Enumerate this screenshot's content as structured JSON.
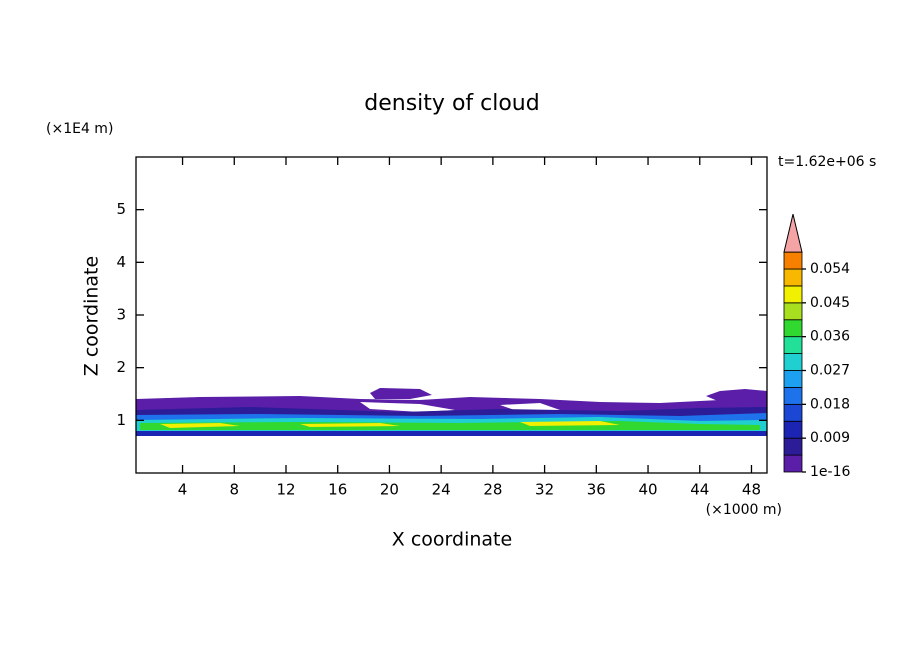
{
  "chart_data": {
    "type": "contour",
    "title": "density of cloud",
    "y_unit": "(×1E4 m)",
    "x_unit": "(×1000 m)",
    "time_label": "t=1.62e+06 s",
    "xlabel": "X coordinate",
    "ylabel": "Z coordinate",
    "xlim": [
      0.4,
      49.2
    ],
    "ylim": [
      0,
      6
    ],
    "xticks": [
      4,
      8,
      12,
      16,
      20,
      24,
      28,
      32,
      36,
      40,
      44,
      48
    ],
    "yticks": [
      1,
      2,
      3,
      4,
      5
    ],
    "colorbar": {
      "ticks": [
        1e-16,
        0.009,
        0.018,
        0.027,
        0.036,
        0.045,
        0.054
      ],
      "colors": [
        "#5a1ea8",
        "#2c1c98",
        "#1c24b4",
        "#1c46d4",
        "#1e72ec",
        "#1ea0f0",
        "#20d0d0",
        "#22e098",
        "#30d830",
        "#a8e020",
        "#f0f000",
        "#f8b800",
        "#f88000",
        "#f04010",
        "#e81010"
      ],
      "over_color": "#f4a4a4"
    }
  }
}
